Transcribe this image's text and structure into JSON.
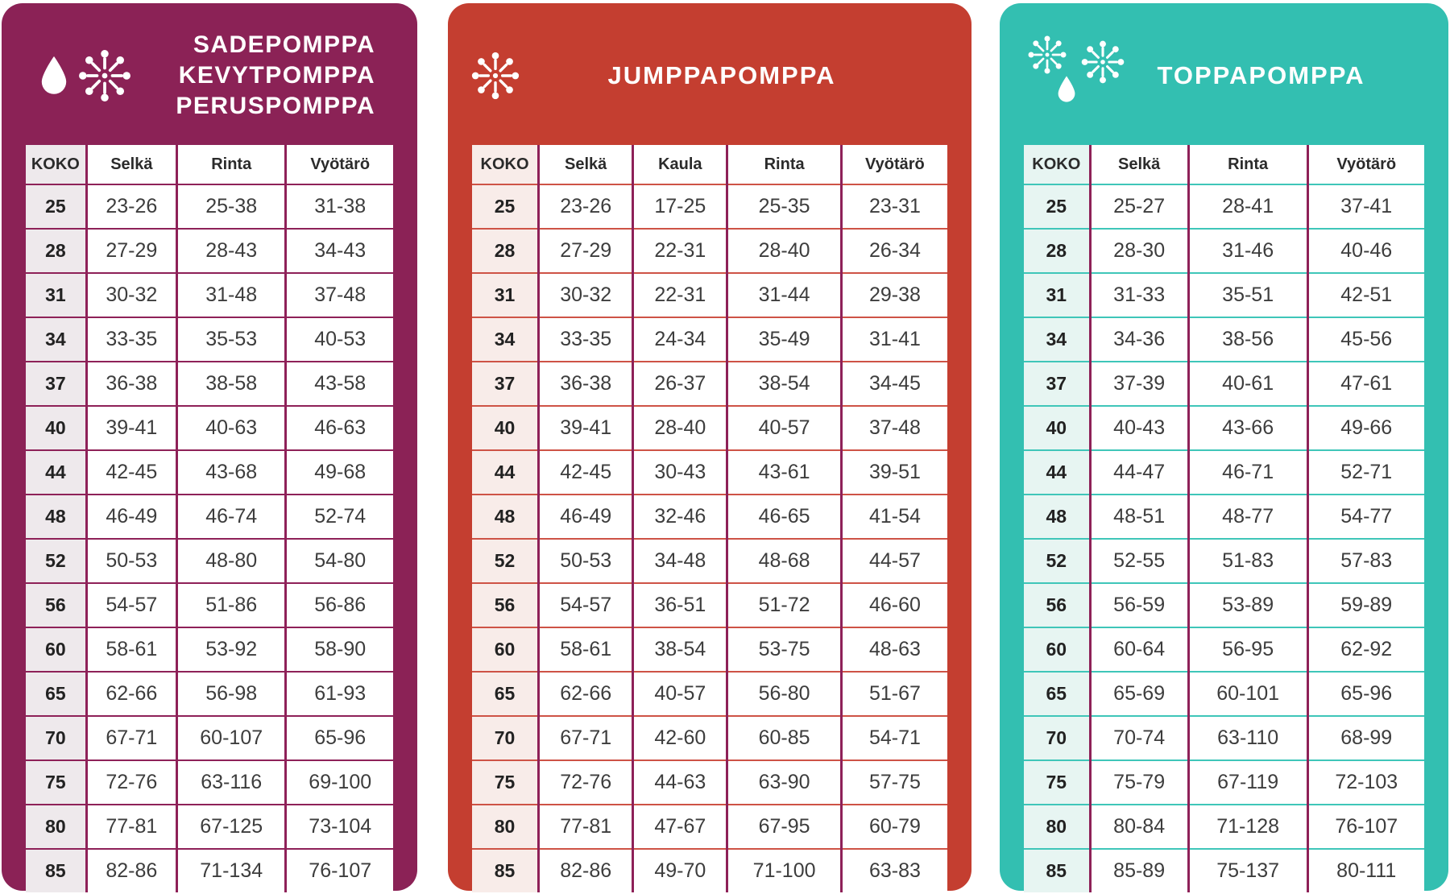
{
  "chart_data": [
    {
      "type": "table",
      "title": "SADEPOMPPA / KEVYTPOMPPA / PERUSPOMPPA",
      "columns": [
        "KOKO",
        "Selkä",
        "Rinta",
        "Vyötärö"
      ],
      "rows": [
        [
          "25",
          "23-26",
          "25-38",
          "31-38"
        ],
        [
          "28",
          "27-29",
          "28-43",
          "34-43"
        ],
        [
          "31",
          "30-32",
          "31-48",
          "37-48"
        ],
        [
          "34",
          "33-35",
          "35-53",
          "40-53"
        ],
        [
          "37",
          "36-38",
          "38-58",
          "43-58"
        ],
        [
          "40",
          "39-41",
          "40-63",
          "46-63"
        ],
        [
          "44",
          "42-45",
          "43-68",
          "49-68"
        ],
        [
          "48",
          "46-49",
          "46-74",
          "52-74"
        ],
        [
          "52",
          "50-53",
          "48-80",
          "54-80"
        ],
        [
          "56",
          "54-57",
          "51-86",
          "56-86"
        ],
        [
          "60",
          "58-61",
          "53-92",
          "58-90"
        ],
        [
          "65",
          "62-66",
          "56-98",
          "61-93"
        ],
        [
          "70",
          "67-71",
          "60-107",
          "65-96"
        ],
        [
          "75",
          "72-76",
          "63-116",
          "69-100"
        ],
        [
          "80",
          "77-81",
          "67-125",
          "73-104"
        ],
        [
          "85",
          "82-86",
          "71-134",
          "76-107"
        ]
      ]
    },
    {
      "type": "table",
      "title": "JUMPPAPOMPPA",
      "columns": [
        "KOKO",
        "Selkä",
        "Kaula",
        "Rinta",
        "Vyötärö"
      ],
      "rows": [
        [
          "25",
          "23-26",
          "17-25",
          "25-35",
          "23-31"
        ],
        [
          "28",
          "27-29",
          "22-31",
          "28-40",
          "26-34"
        ],
        [
          "31",
          "30-32",
          "22-31",
          "31-44",
          "29-38"
        ],
        [
          "34",
          "33-35",
          "24-34",
          "35-49",
          "31-41"
        ],
        [
          "37",
          "36-38",
          "26-37",
          "38-54",
          "34-45"
        ],
        [
          "40",
          "39-41",
          "28-40",
          "40-57",
          "37-48"
        ],
        [
          "44",
          "42-45",
          "30-43",
          "43-61",
          "39-51"
        ],
        [
          "48",
          "46-49",
          "32-46",
          "46-65",
          "41-54"
        ],
        [
          "52",
          "50-53",
          "34-48",
          "48-68",
          "44-57"
        ],
        [
          "56",
          "54-57",
          "36-51",
          "51-72",
          "46-60"
        ],
        [
          "60",
          "58-61",
          "38-54",
          "53-75",
          "48-63"
        ],
        [
          "65",
          "62-66",
          "40-57",
          "56-80",
          "51-67"
        ],
        [
          "70",
          "67-71",
          "42-60",
          "60-85",
          "54-71"
        ],
        [
          "75",
          "72-76",
          "44-63",
          "63-90",
          "57-75"
        ],
        [
          "80",
          "77-81",
          "47-67",
          "67-95",
          "60-79"
        ],
        [
          "85",
          "82-86",
          "49-70",
          "71-100",
          "63-83"
        ]
      ]
    },
    {
      "type": "table",
      "title": "TOPPAPOMPPA",
      "columns": [
        "KOKO",
        "Selkä",
        "Rinta",
        "Vyötärö"
      ],
      "rows": [
        [
          "25",
          "25-27",
          "28-41",
          "37-41"
        ],
        [
          "28",
          "28-30",
          "31-46",
          "40-46"
        ],
        [
          "31",
          "31-33",
          "35-51",
          "42-51"
        ],
        [
          "34",
          "34-36",
          "38-56",
          "45-56"
        ],
        [
          "37",
          "37-39",
          "40-61",
          "47-61"
        ],
        [
          "40",
          "40-43",
          "43-66",
          "49-66"
        ],
        [
          "44",
          "44-47",
          "46-71",
          "52-71"
        ],
        [
          "48",
          "48-51",
          "48-77",
          "54-77"
        ],
        [
          "52",
          "52-55",
          "51-83",
          "57-83"
        ],
        [
          "56",
          "56-59",
          "53-89",
          "59-89"
        ],
        [
          "60",
          "60-64",
          "56-95",
          "62-92"
        ],
        [
          "65",
          "65-69",
          "60-101",
          "65-96"
        ],
        [
          "70",
          "70-74",
          "63-110",
          "68-99"
        ],
        [
          "75",
          "75-79",
          "67-119",
          "72-103"
        ],
        [
          "80",
          "80-84",
          "71-128",
          "76-107"
        ],
        [
          "85",
          "85-89",
          "75-137",
          "80-111"
        ]
      ]
    }
  ],
  "panels": [
    {
      "name": "sadepomppa-kevytpomppa-peruspomppa",
      "title_lines": [
        "SADEPOMPPA",
        "KEVYTPOMPPA",
        "PERUSPOMPPA"
      ],
      "icons": [
        "droplet-icon",
        "burst-snowflake-icon"
      ],
      "colors": {
        "accent": "#8B2256",
        "hline": "#8E2158",
        "vline": "#8E2158",
        "koko_bg": "#EEE9EC",
        "title": "#FFFFFF",
        "text": "#3D3D3D"
      }
    },
    {
      "name": "jumppapomppa",
      "title_lines": [
        "JUMPPAPOMPPA"
      ],
      "icons": [
        "burst-snowflake-icon"
      ],
      "colors": {
        "accent": "#C43E30",
        "hline": "#CE5346",
        "vline": "#8E2158",
        "koko_bg": "#F8ECE9",
        "title": "#FFFFFF",
        "text": "#3D3D3D"
      }
    },
    {
      "name": "toppapomppa",
      "title_lines": [
        "TOPPAPOMPPA"
      ],
      "icons": [
        "burst-snowflake-icon",
        "droplet-icon",
        "burst-snowflake-icon"
      ],
      "colors": {
        "accent": "#33BFB1",
        "hline": "#3FC6B9",
        "vline": "#8E2158",
        "koko_bg": "#E7F5F2",
        "title": "#FFFFFF",
        "text": "#3D3D3D"
      }
    }
  ]
}
